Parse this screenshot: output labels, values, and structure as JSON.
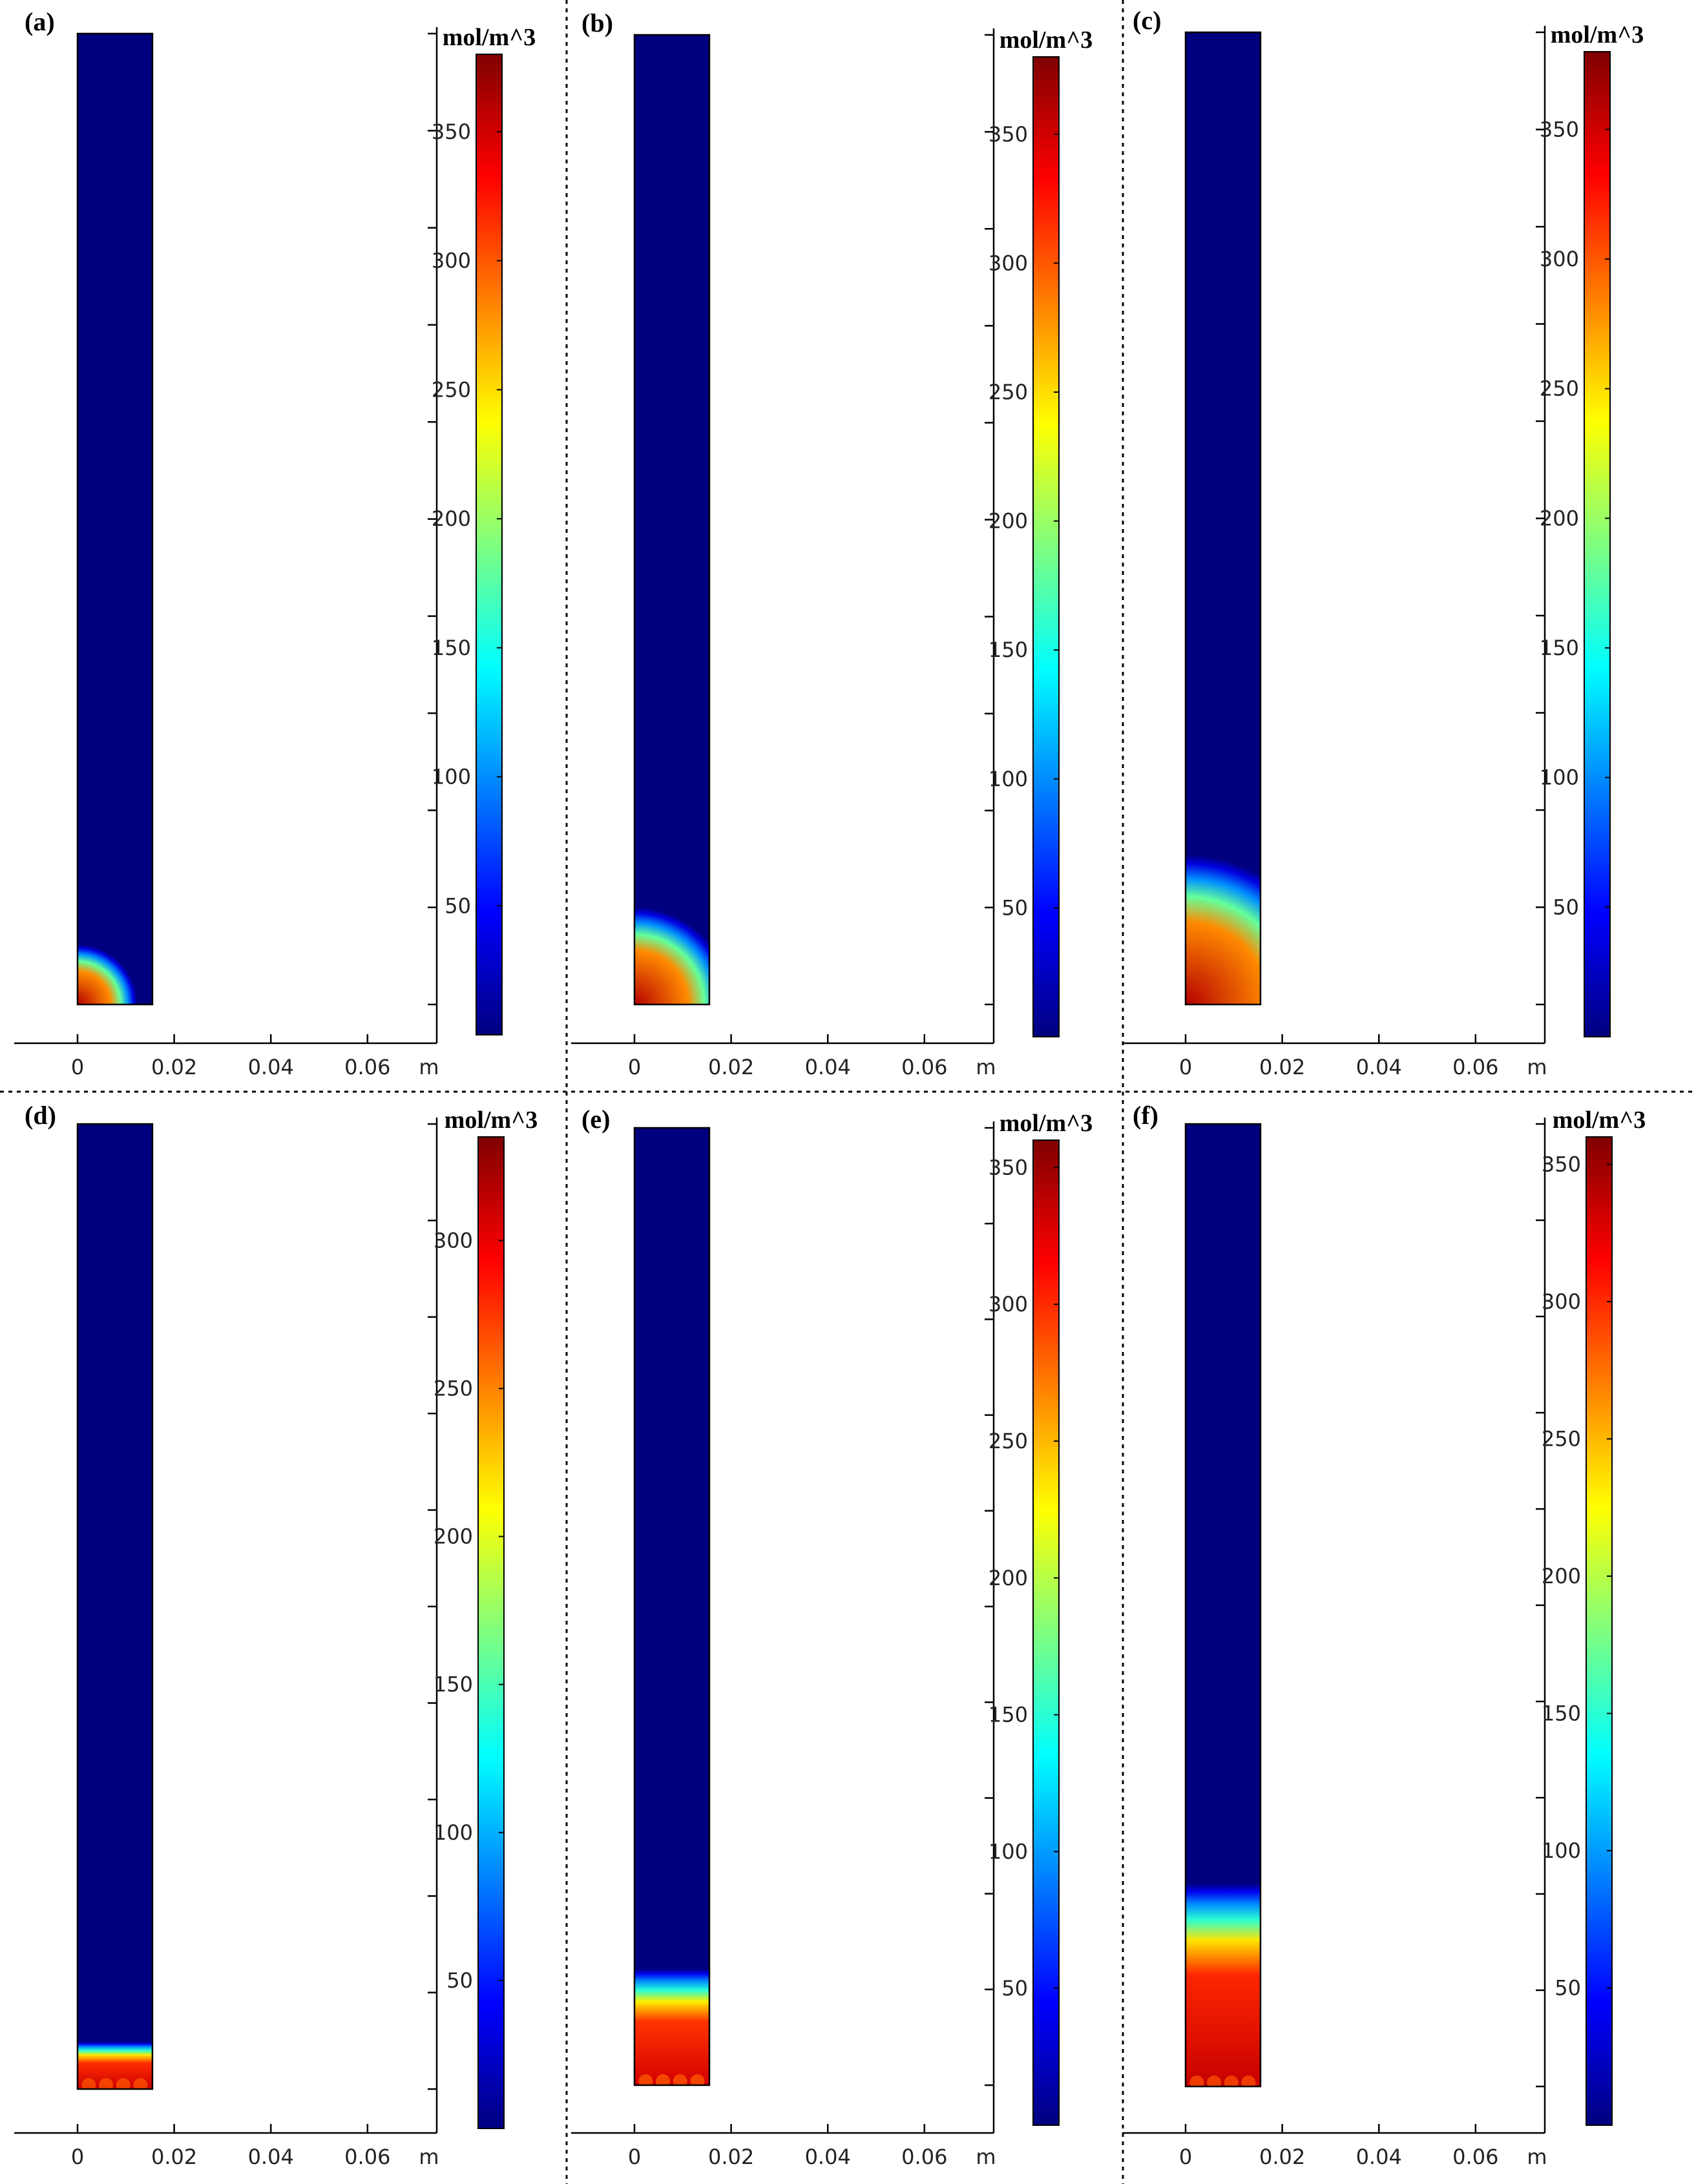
{
  "colormap": [
    "#00007f",
    "#0000ff",
    "#007fff",
    "#00ffff",
    "#7fff7f",
    "#ffff00",
    "#ff7f00",
    "#ff0000",
    "#7f0000"
  ],
  "chart_data": [
    {
      "type": "heatmap",
      "panel": "(a)",
      "x_ticks": [
        "0",
        "0.02",
        "0.04",
        "0.06"
      ],
      "x_unit": "m",
      "colorbar": {
        "unit": "mol/m^3",
        "ticks": [
          50,
          100,
          150,
          200,
          250,
          300,
          350
        ],
        "min": 0,
        "max": 380
      },
      "hot_zone": {
        "shape": "quarter-disc",
        "radius_m": 0.008,
        "peak": 360
      }
    },
    {
      "type": "heatmap",
      "panel": "(b)",
      "x_ticks": [
        "0",
        "0.02",
        "0.04",
        "0.06"
      ],
      "x_unit": "m",
      "colorbar": {
        "unit": "mol/m^3",
        "ticks": [
          50,
          100,
          150,
          200,
          250,
          300,
          350
        ],
        "min": 0,
        "max": 380
      },
      "hot_zone": {
        "shape": "quarter-disc",
        "radius_m": 0.013,
        "peak": 360
      }
    },
    {
      "type": "heatmap",
      "panel": "(c)",
      "x_ticks": [
        "0",
        "0.02",
        "0.04",
        "0.06"
      ],
      "x_unit": "m",
      "colorbar": {
        "unit": "mol/m^3",
        "ticks": [
          50,
          100,
          150,
          200,
          250,
          300,
          350
        ],
        "min": 0,
        "max": 380
      },
      "hot_zone": {
        "shape": "quarter-disc",
        "radius_m": 0.02,
        "peak": 360
      }
    },
    {
      "type": "heatmap",
      "panel": "(d)",
      "x_ticks": [
        "0",
        "0.02",
        "0.04",
        "0.06"
      ],
      "x_unit": "m",
      "colorbar": {
        "unit": "mol/m^3",
        "ticks": [
          50,
          100,
          150,
          200,
          250,
          300
        ],
        "min": 0,
        "max": 335
      },
      "hot_zone": {
        "shape": "band",
        "height_m": 0.0065,
        "peak": 310
      }
    },
    {
      "type": "heatmap",
      "panel": "(e)",
      "x_ticks": [
        "0",
        "0.02",
        "0.04",
        "0.06"
      ],
      "x_unit": "m",
      "colorbar": {
        "unit": "mol/m^3",
        "ticks": [
          50,
          100,
          150,
          200,
          250,
          300,
          350
        ],
        "min": 0,
        "max": 360
      },
      "hot_zone": {
        "shape": "band",
        "height_m": 0.016,
        "peak": 330
      }
    },
    {
      "type": "heatmap",
      "panel": "(f)",
      "x_ticks": [
        "0",
        "0.02",
        "0.04",
        "0.06"
      ],
      "x_unit": "m",
      "colorbar": {
        "unit": "mol/m^3",
        "ticks": [
          50,
          100,
          150,
          200,
          250,
          300,
          350
        ],
        "min": 0,
        "max": 360
      },
      "hot_zone": {
        "shape": "band",
        "height_m": 0.028,
        "peak": 335
      }
    }
  ]
}
